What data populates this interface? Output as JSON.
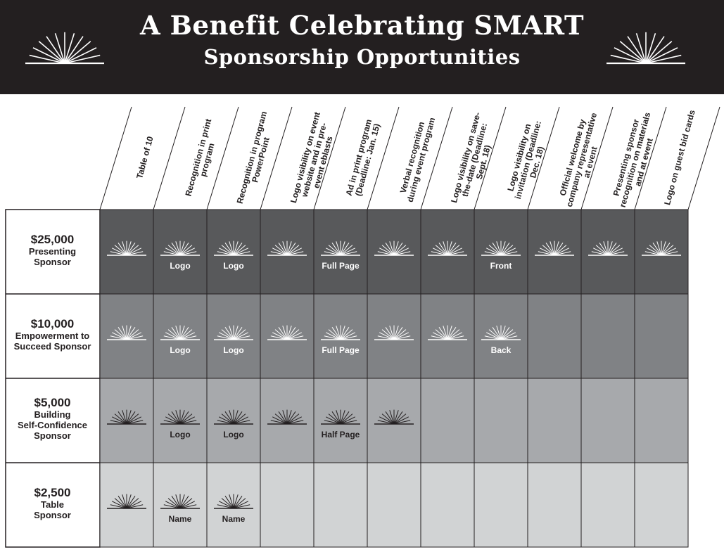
{
  "header": {
    "title": "A Benefit Celebrating SMART",
    "subtitle": "Sponsorship Opportunities"
  },
  "colors": {
    "header_bg": "#231f20",
    "row_25000": "#58595b",
    "row_10000": "#808285",
    "row_5000": "#a7a9ac",
    "row_2500": "#d1d3d4"
  },
  "icons": {
    "header": "sunburst-icon",
    "benefit": "sunburst-icon"
  },
  "columns": [
    "Table of 10",
    "Recognition in print program",
    "Recognition in program PowerPoint",
    "Logo visibility on event website and in pre-event eblasts",
    "Ad in print program (Deadline: Jan. 15)",
    "Verbal recognition during event program",
    "Logo visibility on save-the-date (Deadline: Sept. 18)",
    "Logo visibility on invitation (Deadline: Dec. 18)",
    "Official welcome by company representative at event",
    "Presenting sponsor recognition on materials and at event",
    "Logo on guest bid cards"
  ],
  "tiers": [
    {
      "amount": "$25,000",
      "name_lines": [
        "Presenting",
        "Sponsor"
      ],
      "included": [
        true,
        true,
        true,
        true,
        true,
        true,
        true,
        true,
        true,
        true,
        true
      ],
      "notes": [
        "",
        "Logo",
        "Logo",
        "",
        "Full Page",
        "",
        "",
        "Front",
        "",
        "",
        ""
      ]
    },
    {
      "amount": "$10,000",
      "name_lines": [
        "Empowerment to",
        "Succeed Sponsor"
      ],
      "included": [
        true,
        true,
        true,
        true,
        true,
        true,
        true,
        true,
        false,
        false,
        false
      ],
      "notes": [
        "",
        "Logo",
        "Logo",
        "",
        "Full Page",
        "",
        "",
        "Back",
        "",
        "",
        ""
      ]
    },
    {
      "amount": "$5,000",
      "name_lines": [
        "Building",
        "Self-Confidence",
        "Sponsor"
      ],
      "included": [
        true,
        true,
        true,
        true,
        true,
        true,
        false,
        false,
        false,
        false,
        false
      ],
      "notes": [
        "",
        "Logo",
        "Logo",
        "",
        "Half Page",
        "",
        "",
        "",
        "",
        "",
        ""
      ]
    },
    {
      "amount": "$2,500",
      "name_lines": [
        "Table",
        "Sponsor"
      ],
      "included": [
        true,
        true,
        true,
        false,
        false,
        false,
        false,
        false,
        false,
        false,
        false
      ],
      "notes": [
        "",
        "Name",
        "Name",
        "",
        "",
        "",
        "",
        "",
        "",
        "",
        ""
      ]
    }
  ]
}
